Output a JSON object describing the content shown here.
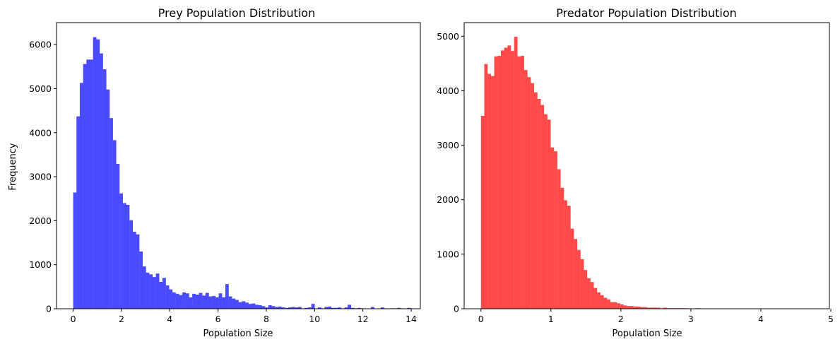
{
  "chart_data": [
    {
      "type": "bar",
      "title": "Prey Population Distribution",
      "xlabel": "Population Size",
      "ylabel": "Frequency",
      "color": "#4a4aff",
      "xlim": [
        -0.69,
        14.38
      ],
      "ylim": [
        0,
        6500
      ],
      "xticks": [
        0,
        2,
        4,
        6,
        8,
        10,
        12,
        14
      ],
      "yticks": [
        0,
        1000,
        2000,
        3000,
        4000,
        5000,
        6000
      ],
      "bin_start": 0,
      "bin_width": 0.137,
      "values": [
        2640,
        4370,
        5130,
        5560,
        5660,
        5660,
        6170,
        6120,
        5800,
        5440,
        4980,
        4330,
        3830,
        3290,
        2620,
        2400,
        2360,
        2010,
        1750,
        1690,
        1300,
        960,
        820,
        780,
        720,
        800,
        610,
        700,
        530,
        440,
        370,
        340,
        310,
        370,
        350,
        260,
        340,
        320,
        360,
        300,
        360,
        280,
        290,
        260,
        350,
        260,
        560,
        280,
        230,
        200,
        150,
        170,
        140,
        110,
        120,
        90,
        80,
        60,
        30,
        80,
        60,
        40,
        50,
        30,
        20,
        30,
        40,
        30,
        40,
        10,
        20,
        30,
        110,
        10,
        30,
        10,
        40,
        50,
        20,
        20,
        30,
        10,
        30,
        90,
        20,
        10,
        20,
        10,
        0,
        0,
        40,
        0,
        0,
        30,
        10,
        0,
        10,
        0,
        20,
        10,
        0,
        20,
        0,
        0,
        0,
        0,
        0,
        0,
        0,
        0,
        0,
        0,
        0,
        0,
        0,
        0,
        0,
        0,
        0,
        0,
        0,
        0,
        0,
        0,
        0,
        0,
        0,
        0,
        0,
        0,
        0,
        0,
        0,
        0,
        40,
        10,
        0,
        0,
        0,
        0
      ]
    },
    {
      "type": "bar",
      "title": "Predator Population Distribution",
      "xlabel": "Population Size",
      "ylabel": "",
      "color": "#ff4a4a",
      "xlim": [
        -0.24,
        4.98
      ],
      "ylim": [
        0,
        5250
      ],
      "xticks": [
        0,
        1,
        2,
        3,
        4,
        5
      ],
      "yticks": [
        0,
        1000,
        2000,
        3000,
        4000,
        5000
      ],
      "bin_start": 0,
      "bin_width": 0.0474,
      "values": [
        3540,
        4490,
        4310,
        4270,
        4630,
        4640,
        4740,
        4790,
        4830,
        4730,
        4990,
        4630,
        4640,
        4380,
        4250,
        4140,
        3970,
        3850,
        3740,
        3570,
        3470,
        2960,
        2890,
        2560,
        2220,
        1990,
        1890,
        1470,
        1280,
        1080,
        910,
        710,
        560,
        490,
        380,
        300,
        250,
        200,
        170,
        120,
        120,
        100,
        80,
        60,
        50,
        50,
        40,
        40,
        30,
        30,
        20,
        20,
        20,
        20,
        10,
        20,
        10,
        10,
        10,
        10,
        10,
        10,
        5,
        5,
        5,
        10,
        5,
        5,
        5,
        5,
        5,
        5,
        5,
        5,
        5,
        5,
        5,
        5,
        5,
        5,
        5,
        5,
        5,
        5,
        5,
        5,
        5,
        5,
        5,
        5,
        5,
        5,
        5,
        5,
        5,
        5,
        5,
        5,
        5,
        5
      ]
    }
  ]
}
